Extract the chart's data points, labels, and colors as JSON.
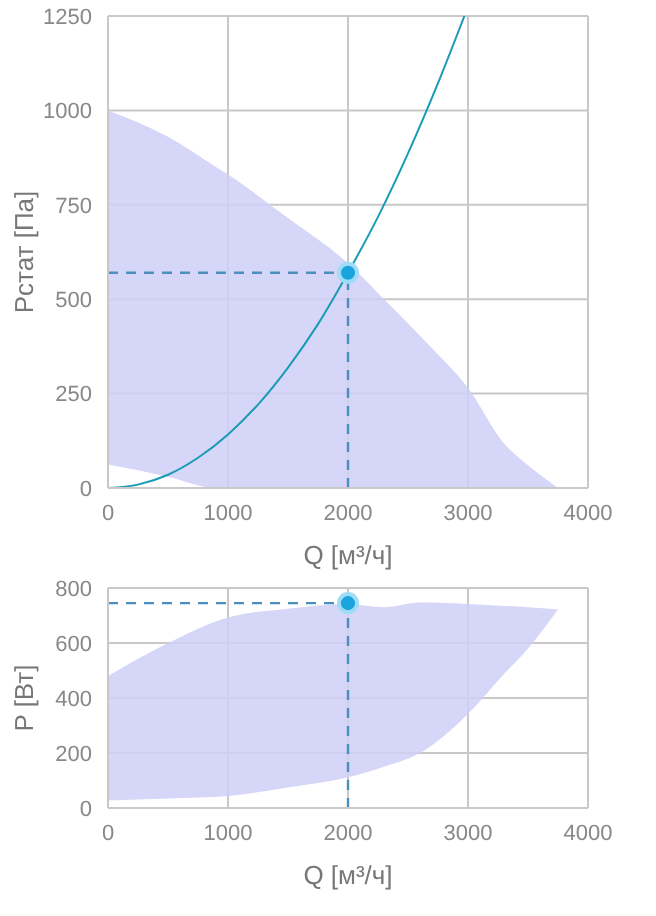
{
  "chart_data": [
    {
      "type": "line",
      "xlabel": "Q [м³/ч]",
      "ylabel": "Pстат [Па]",
      "xlim": [
        0,
        4000
      ],
      "ylim": [
        0,
        1250
      ],
      "xticks": [
        0,
        1000,
        2000,
        3000,
        4000
      ],
      "yticks": [
        0,
        250,
        500,
        750,
        1000,
        1250
      ],
      "grid": true,
      "series": [
        {
          "type": "area",
          "color": "#cfcff7",
          "x": [
            0,
            500,
            900,
            1000,
            1500,
            2000,
            2300,
            2700,
            3000,
            3300,
            3500,
            3750
          ],
          "values": [
            null,
            null,
            null,
            null,
            null,
            null,
            null,
            null,
            null,
            null,
            null,
            null
          ],
          "lower": [
            62,
            30,
            0,
            0,
            0,
            0,
            0,
            0,
            0,
            0,
            0,
            0
          ],
          "upper": [
            1000,
            930,
            850,
            830,
            715,
            595,
            500,
            370,
            265,
            118,
            60,
            0
          ]
        },
        {
          "color": "#1a9bb5",
          "marker": "none",
          "x": [
            0,
            250,
            500,
            750,
            1000,
            1250,
            1500,
            1750,
            2000,
            2250,
            2500,
            2750,
            2970
          ],
          "values": [
            0,
            9,
            35,
            80,
            142,
            221,
            319,
            434,
            570,
            718,
            886,
            1072,
            1250
          ]
        },
        {
          "type": "scatter",
          "color": "#1aa3dc",
          "marker": "circle",
          "x": [
            2000
          ],
          "values": [
            570
          ]
        }
      ],
      "ref_lines": [
        {
          "axis": "x",
          "value": 2000,
          "color": "#4a8fc0",
          "line_style": "dashed"
        },
        {
          "axis": "y",
          "value": 570,
          "color": "#4a8fc0",
          "line_style": "dashed"
        }
      ]
    },
    {
      "type": "scatter",
      "xlabel": "Q [м³/ч]",
      "ylabel": "P [Вт]",
      "xlim": [
        0,
        4000
      ],
      "ylim": [
        0,
        800
      ],
      "xticks": [
        0,
        1000,
        2000,
        3000,
        4000
      ],
      "yticks": [
        0,
        200,
        400,
        600,
        800
      ],
      "grid": true,
      "series": [
        {
          "type": "area",
          "color": "#cfcff7",
          "x": [
            0,
            500,
            1000,
            1500,
            2000,
            2300,
            2600,
            3000,
            3300,
            3500,
            3750
          ],
          "values": [
            null,
            null,
            null,
            null,
            null,
            null,
            null,
            null,
            null,
            null,
            null
          ],
          "lower": [
            27,
            35,
            44,
            75,
            112,
            150,
            200,
            342,
            487,
            580,
            722
          ],
          "upper": [
            480,
            600,
            693,
            725,
            742,
            730,
            747,
            742,
            735,
            730,
            722
          ]
        },
        {
          "color": "#1aa3dc",
          "marker": "circle",
          "x": [
            2000
          ],
          "values": [
            745
          ]
        }
      ],
      "ref_lines": [
        {
          "axis": "x",
          "value": 2000,
          "color": "#4a8fc0",
          "line_style": "dashed"
        },
        {
          "axis": "y",
          "value": 745,
          "color": "#4a8fc0",
          "line_style": "dashed"
        }
      ]
    }
  ]
}
